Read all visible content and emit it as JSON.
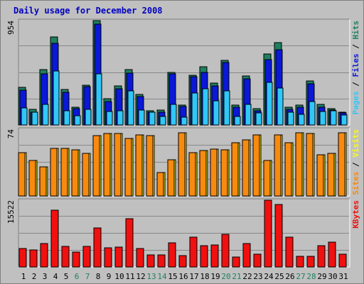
{
  "colors": {
    "background": "#c0c0c0",
    "border_light": "#ffffff",
    "border_dark": "#808080",
    "title": "#0000c0",
    "hits": "#1e8060",
    "files": "#0a18d8",
    "pages": "#30c8f8",
    "visits": "#f8f820",
    "sites": "#f88a10",
    "kbytes": "#f01010",
    "weekday_label": "#000000",
    "weekend_label": "#208060",
    "axis_label": "#000000"
  },
  "chart_data": {
    "type": "bar",
    "title": "Daily usage for December 2008",
    "categories": [
      "1",
      "2",
      "3",
      "4",
      "5",
      "6",
      "7",
      "8",
      "9",
      "10",
      "11",
      "12",
      "13",
      "14",
      "15",
      "16",
      "17",
      "18",
      "19",
      "20",
      "21",
      "22",
      "23",
      "24",
      "25",
      "26",
      "27",
      "28",
      "29",
      "30",
      "31"
    ],
    "weekend_days": [
      "6",
      "7",
      "13",
      "14",
      "20",
      "21",
      "27",
      "28"
    ],
    "panels": [
      {
        "name": "top",
        "ymax_label": "954",
        "ymax": 954,
        "right_label": [
          {
            "text": "Pages",
            "color_key": "pages"
          },
          {
            "text": " / ",
            "color_key": "axis_label"
          },
          {
            "text": "Files",
            "color_key": "files"
          },
          {
            "text": " / ",
            "color_key": "axis_label"
          },
          {
            "text": "Hits",
            "color_key": "hits"
          }
        ],
        "series": [
          {
            "name": "Hits",
            "color_key": "hits",
            "values": [
              342,
              145,
              505,
              803,
              327,
              160,
              363,
              954,
              238,
              354,
              505,
              281,
              130,
              136,
              483,
              182,
              457,
              535,
              382,
              593,
              183,
              450,
              150,
              650,
              750,
              160,
              180,
              400,
              185,
              150,
              120
            ]
          },
          {
            "name": "Files",
            "color_key": "files",
            "values": [
              320,
              120,
              470,
              748,
              300,
              150,
              350,
              922,
              215,
              330,
              475,
              260,
              120,
              120,
              465,
              170,
              440,
              480,
              360,
              570,
              165,
              420,
              130,
              595,
              690,
              140,
              160,
              375,
              165,
              135,
              110
            ]
          },
          {
            "name": "Pages",
            "color_key": "pages",
            "values": [
              155,
              115,
              185,
              490,
              130,
              85,
              145,
              465,
              125,
              130,
              310,
              135,
              115,
              80,
              185,
              70,
              290,
              330,
              220,
              310,
              80,
              190,
              110,
              390,
              340,
              120,
              100,
              215,
              125,
              130,
              90
            ]
          }
        ]
      },
      {
        "name": "middle",
        "ymax_label": "74",
        "ymax": 74,
        "right_label": [
          {
            "text": "Sites",
            "color_key": "sites"
          },
          {
            "text": " / ",
            "color_key": "axis_label"
          },
          {
            "text": "Visits",
            "color_key": "visits"
          }
        ],
        "series": [
          {
            "name": "Visits",
            "color_key": "visits",
            "values": [
              48,
              39,
              32,
              53,
              53,
              51,
              47,
              67,
              69,
              69,
              64,
              68,
              67,
              26,
              40,
              70,
              48,
              50,
              52,
              51,
              59,
              62,
              68,
              39,
              68,
              59,
              70,
              69,
              46,
              47,
              70
            ]
          },
          {
            "name": "Sites",
            "color_key": "sites",
            "values": [
              48,
              39,
              32,
              53,
              53,
              51,
              47,
              67,
              69,
              69,
              64,
              68,
              67,
              26,
              40,
              70,
              48,
              50,
              52,
              51,
              59,
              62,
              68,
              39,
              68,
              59,
              70,
              69,
              46,
              47,
              70
            ]
          }
        ]
      },
      {
        "name": "bottom",
        "ymax_label": "15522",
        "ymax": 15522,
        "right_label": [
          {
            "text": "KBytes",
            "color_key": "kbytes"
          }
        ],
        "series": [
          {
            "name": "KBytes",
            "color_key": "kbytes",
            "values": [
              4360,
              3885,
              5470,
              13180,
              4800,
              3530,
              4860,
              9050,
              4380,
              4580,
              11190,
              4280,
              2730,
              2730,
              5590,
              2670,
              6990,
              5000,
              5140,
              7640,
              2380,
              5530,
              2970,
              15520,
              14610,
              6970,
              2420,
              2520,
              4980,
              5750,
              2960
            ]
          }
        ]
      }
    ]
  }
}
